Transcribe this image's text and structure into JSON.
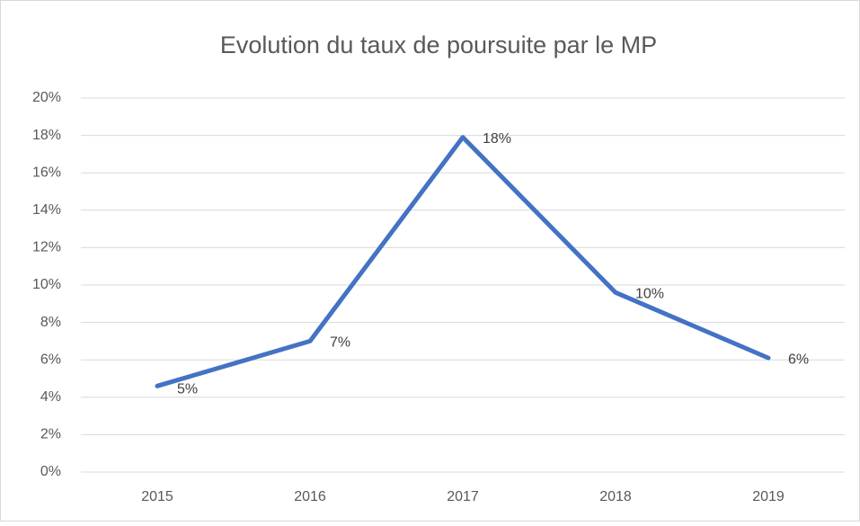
{
  "chart_data": {
    "type": "line",
    "title": "Evolution du taux de poursuite par le MP",
    "categories": [
      "2015",
      "2016",
      "2017",
      "2018",
      "2019"
    ],
    "values": [
      4.6,
      7.0,
      17.9,
      9.6,
      6.1
    ],
    "value_labels": [
      "5%",
      "7%",
      "18%",
      "10%",
      "6%"
    ],
    "color": "#4472c4",
    "ylim": [
      0,
      20
    ],
    "yticks": [
      {
        "value": 0,
        "label": "0%"
      },
      {
        "value": 2,
        "label": "2%"
      },
      {
        "value": 4,
        "label": "4%"
      },
      {
        "value": 6,
        "label": "6%"
      },
      {
        "value": 8,
        "label": "8%"
      },
      {
        "value": 10,
        "label": "10%"
      },
      {
        "value": 12,
        "label": "12%"
      },
      {
        "value": 14,
        "label": "14%"
      },
      {
        "value": 16,
        "label": "16%"
      },
      {
        "value": 18,
        "label": "18%"
      },
      {
        "value": 20,
        "label": "20%"
      }
    ],
    "grid": true
  }
}
